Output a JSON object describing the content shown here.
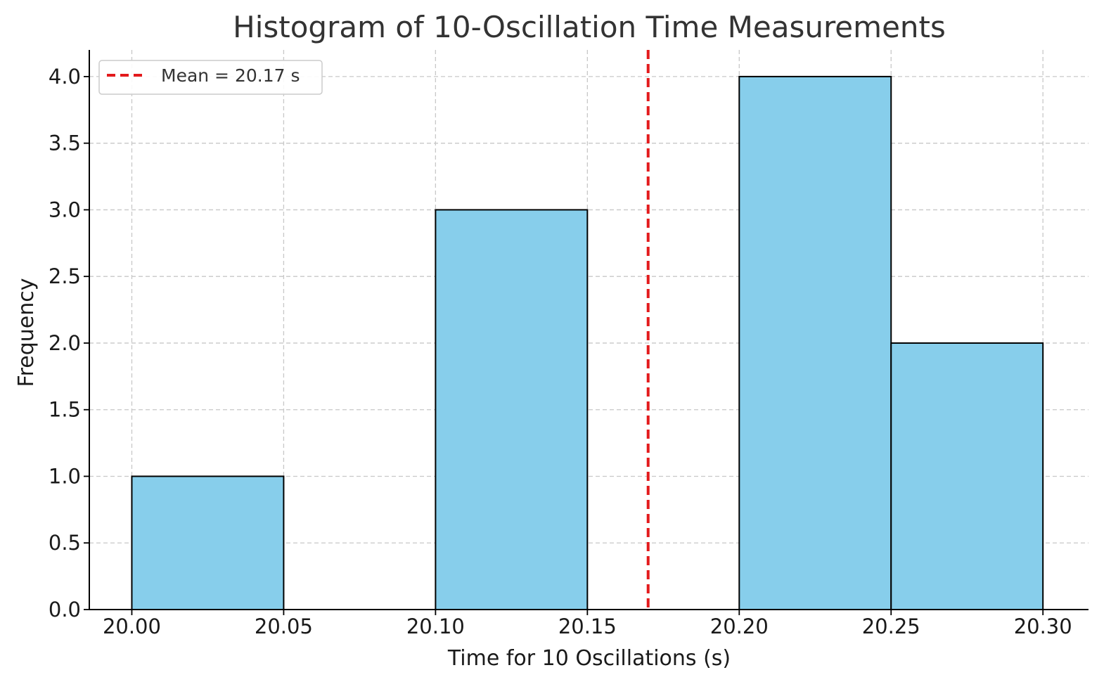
{
  "chart_data": {
    "type": "bar",
    "title": "Histogram of 10-Oscillation Time Measurements",
    "xlabel": "Time for 10 Oscillations (s)",
    "ylabel": "Frequency",
    "bins": [
      {
        "start": 20.0,
        "end": 20.05,
        "count": 1
      },
      {
        "start": 20.05,
        "end": 20.1,
        "count": 0
      },
      {
        "start": 20.1,
        "end": 20.15,
        "count": 3
      },
      {
        "start": 20.15,
        "end": 20.2,
        "count": 0
      },
      {
        "start": 20.2,
        "end": 20.25,
        "count": 4
      },
      {
        "start": 20.25,
        "end": 20.3,
        "count": 2
      }
    ],
    "xlim": [
      19.986,
      20.315
    ],
    "ylim": [
      0,
      4.2
    ],
    "xticks": [
      20.0,
      20.05,
      20.1,
      20.15,
      20.2,
      20.25,
      20.3
    ],
    "xtick_labels": [
      "20.00",
      "20.05",
      "20.10",
      "20.15",
      "20.20",
      "20.25",
      "20.30"
    ],
    "yticks": [
      0.0,
      0.5,
      1.0,
      1.5,
      2.0,
      2.5,
      3.0,
      3.5,
      4.0
    ],
    "ytick_labels": [
      "0.0",
      "0.5",
      "1.0",
      "1.5",
      "2.0",
      "2.5",
      "3.0",
      "3.5",
      "4.0"
    ],
    "mean_line": {
      "value": 20.17,
      "label": "Mean = 20.17 s",
      "color": "#e31a1c"
    },
    "bar_color": "#87ceeb",
    "bar_edge_color": "#000000",
    "grid": true,
    "legend_position": "top-left"
  }
}
